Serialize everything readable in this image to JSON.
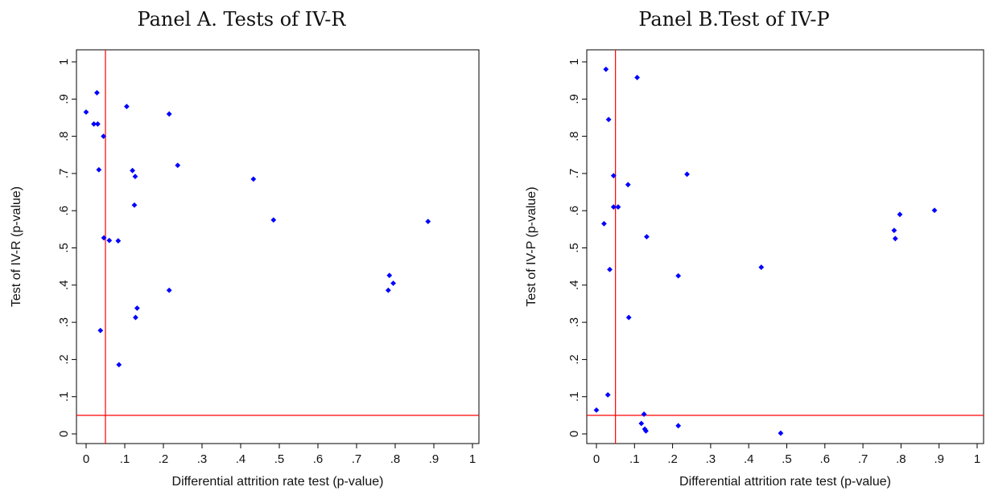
{
  "chart_data": [
    {
      "type": "scatter",
      "title": "Panel A. Tests of IV-R",
      "xlabel": "Differential attrition rate test (p-value)",
      "ylabel": "Test of IV-R (p-value)",
      "xlim": [
        0,
        1
      ],
      "ylim": [
        0,
        1
      ],
      "xticks": [
        "0",
        ".1",
        ".2",
        ".3",
        ".4",
        ".5",
        ".6",
        ".7",
        ".8",
        ".9",
        "1"
      ],
      "yticks": [
        "0",
        ".1",
        ".2",
        ".3",
        ".4",
        ".5",
        ".6",
        ".7",
        ".8",
        ".9",
        "1"
      ],
      "reference_lines": {
        "x": 0.05,
        "y": 0.05,
        "color": "#ff0000"
      },
      "marker_color": "#0000ff",
      "points": [
        {
          "x": 0.0,
          "y": 0.865
        },
        {
          "x": 0.02,
          "y": 0.833
        },
        {
          "x": 0.03,
          "y": 0.833
        },
        {
          "x": 0.028,
          "y": 0.917
        },
        {
          "x": 0.045,
          "y": 0.8
        },
        {
          "x": 0.033,
          "y": 0.71
        },
        {
          "x": 0.046,
          "y": 0.527
        },
        {
          "x": 0.06,
          "y": 0.52
        },
        {
          "x": 0.083,
          "y": 0.519
        },
        {
          "x": 0.037,
          "y": 0.278
        },
        {
          "x": 0.085,
          "y": 0.186
        },
        {
          "x": 0.105,
          "y": 0.88
        },
        {
          "x": 0.12,
          "y": 0.708
        },
        {
          "x": 0.127,
          "y": 0.692
        },
        {
          "x": 0.125,
          "y": 0.615
        },
        {
          "x": 0.128,
          "y": 0.313
        },
        {
          "x": 0.132,
          "y": 0.338
        },
        {
          "x": 0.215,
          "y": 0.86
        },
        {
          "x": 0.237,
          "y": 0.722
        },
        {
          "x": 0.215,
          "y": 0.386
        },
        {
          "x": 0.433,
          "y": 0.685
        },
        {
          "x": 0.485,
          "y": 0.575
        },
        {
          "x": 0.785,
          "y": 0.426
        },
        {
          "x": 0.795,
          "y": 0.405
        },
        {
          "x": 0.782,
          "y": 0.386
        },
        {
          "x": 0.885,
          "y": 0.571
        }
      ]
    },
    {
      "type": "scatter",
      "title": "Panel B.Test of IV-P",
      "xlabel": "Differential attrition rate test (p-value)",
      "ylabel": "Test of IV-P (p-value)",
      "xlim": [
        0,
        1
      ],
      "ylim": [
        0,
        1
      ],
      "xticks": [
        "0",
        ".1",
        ".2",
        ".3",
        ".4",
        ".5",
        ".6",
        ".7",
        ".8",
        ".9",
        "1"
      ],
      "yticks": [
        "0",
        ".1",
        ".2",
        ".3",
        ".4",
        ".5",
        ".6",
        ".7",
        ".8",
        ".9",
        "1"
      ],
      "reference_lines": {
        "x": 0.05,
        "y": 0.05,
        "color": "#ff0000"
      },
      "marker_color": "#0000ff",
      "points": [
        {
          "x": 0.0,
          "y": 0.064
        },
        {
          "x": 0.025,
          "y": 0.98
        },
        {
          "x": 0.032,
          "y": 0.845
        },
        {
          "x": 0.045,
          "y": 0.694
        },
        {
          "x": 0.045,
          "y": 0.61
        },
        {
          "x": 0.057,
          "y": 0.61
        },
        {
          "x": 0.02,
          "y": 0.565
        },
        {
          "x": 0.035,
          "y": 0.442
        },
        {
          "x": 0.03,
          "y": 0.105
        },
        {
          "x": 0.107,
          "y": 0.958
        },
        {
          "x": 0.083,
          "y": 0.67
        },
        {
          "x": 0.085,
          "y": 0.313
        },
        {
          "x": 0.132,
          "y": 0.53
        },
        {
          "x": 0.118,
          "y": 0.028
        },
        {
          "x": 0.125,
          "y": 0.053
        },
        {
          "x": 0.127,
          "y": 0.013
        },
        {
          "x": 0.13,
          "y": 0.008
        },
        {
          "x": 0.238,
          "y": 0.698
        },
        {
          "x": 0.215,
          "y": 0.425
        },
        {
          "x": 0.215,
          "y": 0.022
        },
        {
          "x": 0.433,
          "y": 0.448
        },
        {
          "x": 0.484,
          "y": 0.002
        },
        {
          "x": 0.782,
          "y": 0.547
        },
        {
          "x": 0.785,
          "y": 0.525
        },
        {
          "x": 0.797,
          "y": 0.59
        },
        {
          "x": 0.888,
          "y": 0.601
        }
      ]
    }
  ]
}
